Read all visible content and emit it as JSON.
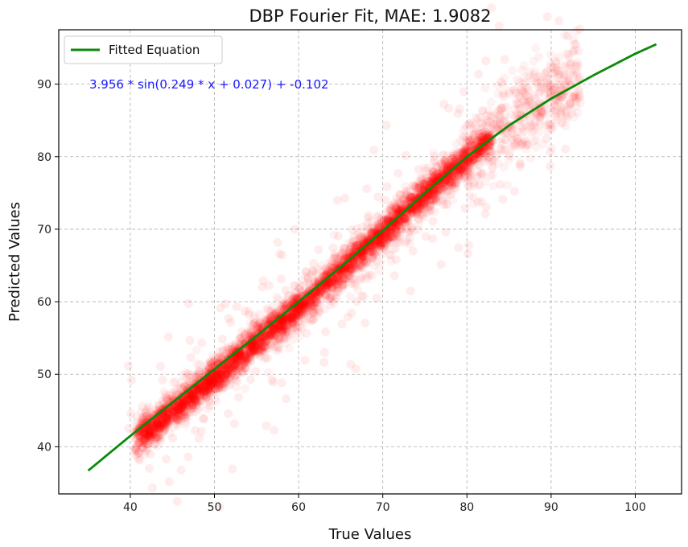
{
  "chart_data": {
    "type": "scatter",
    "title": "DBP Fourier Fit, MAE: 1.9082",
    "xlabel": "True Values",
    "ylabel": "Predicted Values",
    "xlim": [
      31.5,
      105.5
    ],
    "ylim": [
      33.5,
      97.5
    ],
    "xticks": [
      40,
      50,
      60,
      70,
      80,
      90,
      100
    ],
    "yticks": [
      40,
      50,
      60,
      70,
      80,
      90
    ],
    "grid": true,
    "legend": {
      "position": "top-left",
      "entries": [
        "Fitted Equation"
      ]
    },
    "annotation": "3.956 * sin(0.249 * x + 0.027) + -0.102",
    "colors": {
      "points": "#ff0000",
      "fit_line": "#0a8a0a",
      "annotation": "#1a1aff"
    },
    "series": [
      {
        "name": "Fitted Equation",
        "kind": "line",
        "x": [
          35,
          40,
          45,
          50,
          55,
          60,
          65,
          70,
          75,
          80,
          85,
          90,
          95,
          100,
          102.5
        ],
        "y": [
          36.7,
          41.5,
          46.1,
          50.7,
          55.3,
          60.0,
          64.8,
          69.8,
          75.0,
          80.0,
          84.3,
          88.0,
          91.2,
          94.2,
          95.5
        ]
      },
      {
        "kind": "scatter",
        "note_points": "dense cloud of predicted vs true values",
        "x": [
          41,
          42,
          43,
          44,
          45,
          46,
          47,
          48,
          49,
          50,
          52,
          54,
          56,
          58,
          60,
          62,
          64,
          66,
          68,
          70,
          72,
          74,
          76,
          78,
          80,
          82,
          84,
          86,
          88,
          90,
          91,
          92,
          93
        ],
        "y": [
          41.5,
          42.4,
          43.2,
          44.1,
          45.0,
          45.9,
          46.8,
          47.7,
          48.6,
          49.6,
          51.5,
          53.4,
          55.3,
          57.2,
          59.2,
          61.2,
          63.3,
          65.3,
          67.4,
          69.5,
          71.6,
          73.7,
          75.8,
          77.8,
          79.8,
          81.6,
          83.3,
          85.0,
          86.7,
          88.3,
          89.0,
          89.6,
          90.2
        ]
      }
    ]
  }
}
